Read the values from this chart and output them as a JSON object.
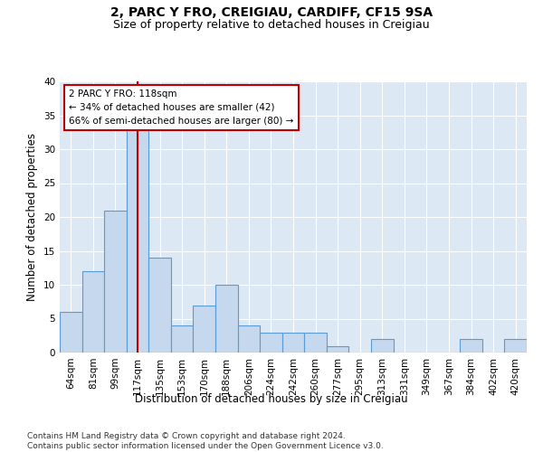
{
  "title": "2, PARC Y FRO, CREIGIAU, CARDIFF, CF15 9SA",
  "subtitle": "Size of property relative to detached houses in Creigiau",
  "xlabel": "Distribution of detached houses by size in Creigiau",
  "ylabel": "Number of detached properties",
  "categories": [
    "64sqm",
    "81sqm",
    "99sqm",
    "117sqm",
    "135sqm",
    "153sqm",
    "170sqm",
    "188sqm",
    "206sqm",
    "224sqm",
    "242sqm",
    "260sqm",
    "277sqm",
    "295sqm",
    "313sqm",
    "331sqm",
    "349sqm",
    "367sqm",
    "384sqm",
    "402sqm",
    "420sqm"
  ],
  "values": [
    6,
    12,
    21,
    33,
    14,
    4,
    7,
    10,
    4,
    3,
    3,
    3,
    1,
    0,
    2,
    0,
    0,
    0,
    2,
    0,
    2
  ],
  "bar_color": "#c5d8ed",
  "bar_edge_color": "#5b9bd5",
  "highlight_bar_index": 3,
  "highlight_line_color": "#c00000",
  "annotation_line1": "2 PARC Y FRO: 118sqm",
  "annotation_line2": "← 34% of detached houses are smaller (42)",
  "annotation_line3": "66% of semi-detached houses are larger (80) →",
  "annotation_box_color": "#c00000",
  "ylim": [
    0,
    40
  ],
  "yticks": [
    0,
    5,
    10,
    15,
    20,
    25,
    30,
    35,
    40
  ],
  "background_color": "#dce9f5",
  "footer_text": "Contains HM Land Registry data © Crown copyright and database right 2024.\nContains public sector information licensed under the Open Government Licence v3.0.",
  "title_fontsize": 10,
  "subtitle_fontsize": 9,
  "xlabel_fontsize": 8.5,
  "ylabel_fontsize": 8.5,
  "tick_fontsize": 7.5,
  "annotation_fontsize": 7.5,
  "footer_fontsize": 6.5
}
